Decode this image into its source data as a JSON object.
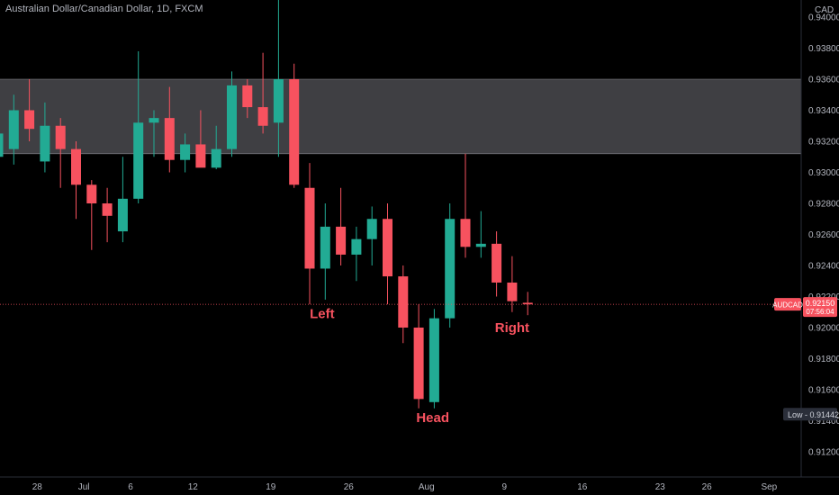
{
  "header": {
    "title": "Australian Dollar/Canadian Dollar, 1D, FXCM"
  },
  "colors": {
    "up": "#22ab94",
    "down": "#f7525f",
    "zone": "#4a4a4f",
    "background": "#000000",
    "text": "#b2b5be",
    "price_line": "#f7525f"
  },
  "chart_data": {
    "type": "candlestick",
    "title": "Australian Dollar/Canadian Dollar, 1D, FXCM",
    "currency": "CAD",
    "ylim": [
      0.91,
      0.9415
    ],
    "y_ticks": [
      "0.94000",
      "0.93800",
      "0.93600",
      "0.93400",
      "0.93200",
      "0.93000",
      "0.92800",
      "0.92600",
      "0.92400",
      "0.92200",
      "0.92000",
      "0.91800",
      "0.91600",
      "0.91400",
      "0.91200"
    ],
    "x_ticks": [
      {
        "label": "28",
        "x": 2.5
      },
      {
        "label": "Jul",
        "x": 5.5
      },
      {
        "label": "6",
        "x": 8.5
      },
      {
        "label": "12",
        "x": 12.5
      },
      {
        "label": "19",
        "x": 17.5
      },
      {
        "label": "26",
        "x": 22.5
      },
      {
        "label": "Aug",
        "x": 27.5
      },
      {
        "label": "9",
        "x": 32.5
      },
      {
        "label": "16",
        "x": 37.5
      },
      {
        "label": "23",
        "x": 42.5
      },
      {
        "label": "26",
        "x": 45.5
      },
      {
        "label": "Sep",
        "x": 49.5
      }
    ],
    "candles": [
      {
        "o": 0.931,
        "h": 0.933,
        "l": 0.929,
        "c": 0.9325
      },
      {
        "o": 0.9315,
        "h": 0.935,
        "l": 0.9305,
        "c": 0.934
      },
      {
        "o": 0.934,
        "h": 0.936,
        "l": 0.932,
        "c": 0.9328
      },
      {
        "o": 0.9307,
        "h": 0.9345,
        "l": 0.93,
        "c": 0.933
      },
      {
        "o": 0.933,
        "h": 0.9335,
        "l": 0.929,
        "c": 0.9315
      },
      {
        "o": 0.9315,
        "h": 0.932,
        "l": 0.927,
        "c": 0.9292
      },
      {
        "o": 0.9292,
        "h": 0.9295,
        "l": 0.925,
        "c": 0.928
      },
      {
        "o": 0.928,
        "h": 0.929,
        "l": 0.9255,
        "c": 0.9272
      },
      {
        "o": 0.9262,
        "h": 0.931,
        "l": 0.9255,
        "c": 0.9283
      },
      {
        "o": 0.9283,
        "h": 0.9378,
        "l": 0.928,
        "c": 0.9332
      },
      {
        "o": 0.9332,
        "h": 0.934,
        "l": 0.931,
        "c": 0.9335
      },
      {
        "o": 0.9335,
        "h": 0.9355,
        "l": 0.93,
        "c": 0.9308
      },
      {
        "o": 0.9308,
        "h": 0.9325,
        "l": 0.93,
        "c": 0.9318
      },
      {
        "o": 0.9318,
        "h": 0.934,
        "l": 0.9305,
        "c": 0.9303
      },
      {
        "o": 0.9303,
        "h": 0.933,
        "l": 0.9302,
        "c": 0.9315
      },
      {
        "o": 0.9315,
        "h": 0.9365,
        "l": 0.931,
        "c": 0.9356
      },
      {
        "o": 0.9356,
        "h": 0.936,
        "l": 0.9335,
        "c": 0.9342
      },
      {
        "o": 0.9342,
        "h": 0.9377,
        "l": 0.9325,
        "c": 0.933
      },
      {
        "o": 0.9332,
        "h": 0.9418,
        "l": 0.931,
        "c": 0.936
      },
      {
        "o": 0.936,
        "h": 0.937,
        "l": 0.929,
        "c": 0.9292
      },
      {
        "o": 0.929,
        "h": 0.9306,
        "l": 0.9215,
        "c": 0.9238
      },
      {
        "o": 0.9238,
        "h": 0.928,
        "l": 0.9218,
        "c": 0.9265
      },
      {
        "o": 0.9265,
        "h": 0.929,
        "l": 0.924,
        "c": 0.9247
      },
      {
        "o": 0.9247,
        "h": 0.9265,
        "l": 0.923,
        "c": 0.9257
      },
      {
        "o": 0.9257,
        "h": 0.9278,
        "l": 0.924,
        "c": 0.927
      },
      {
        "o": 0.927,
        "h": 0.928,
        "l": 0.9215,
        "c": 0.9233
      },
      {
        "o": 0.9233,
        "h": 0.924,
        "l": 0.919,
        "c": 0.92
      },
      {
        "o": 0.92,
        "h": 0.9215,
        "l": 0.9148,
        "c": 0.9154
      },
      {
        "o": 0.9152,
        "h": 0.9212,
        "l": 0.9148,
        "c": 0.9206
      },
      {
        "o": 0.9206,
        "h": 0.928,
        "l": 0.92,
        "c": 0.927
      },
      {
        "o": 0.927,
        "h": 0.9312,
        "l": 0.9245,
        "c": 0.9252
      },
      {
        "o": 0.9252,
        "h": 0.9275,
        "l": 0.9245,
        "c": 0.9254
      },
      {
        "o": 0.9254,
        "h": 0.9262,
        "l": 0.922,
        "c": 0.9229
      },
      {
        "o": 0.9229,
        "h": 0.9246,
        "l": 0.921,
        "c": 0.9217
      },
      {
        "o": 0.9216,
        "h": 0.9223,
        "l": 0.9208,
        "c": 0.9215
      }
    ],
    "zone": {
      "top": 0.936,
      "bottom": 0.9312
    },
    "current_price": {
      "symbol": "AUDCAD",
      "value": "0.92150",
      "countdown": "07:56:04",
      "y": 0.9215
    },
    "low_marker": {
      "label": "Low",
      "value": "0.91442",
      "y": 0.91442
    },
    "annotations": [
      {
        "text": "Left",
        "x": 20.8,
        "y": 0.9206
      },
      {
        "text": "Head",
        "x": 27.9,
        "y": 0.9139
      },
      {
        "text": "Right",
        "x": 33.0,
        "y": 0.9197
      }
    ]
  }
}
